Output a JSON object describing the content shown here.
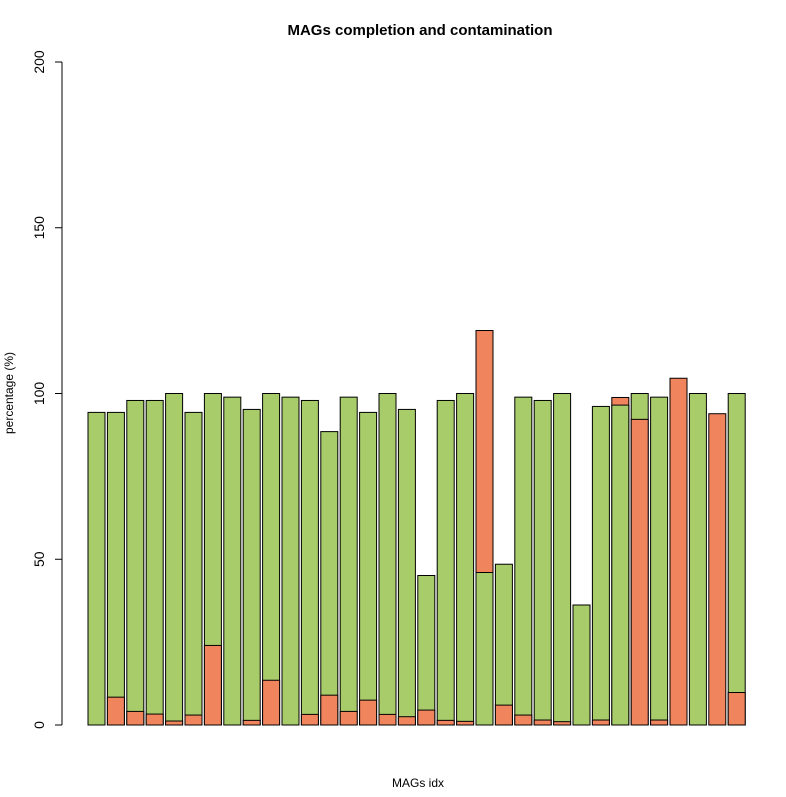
{
  "chart_data": {
    "type": "bar",
    "title": "MAGs completion and contamination",
    "xlabel": "MAGs idx",
    "ylabel": "percentage (%)",
    "ylim": [
      0,
      200
    ],
    "yticks": [
      0,
      50,
      100,
      150,
      200
    ],
    "grid": false,
    "legend": "none",
    "series": [
      {
        "values": [
          94.3,
          94.3,
          97.9,
          97.9,
          100,
          94.3,
          100,
          98.9,
          95.2,
          100,
          98.9,
          97.9,
          88.5,
          98.9,
          94.3,
          100,
          95.2,
          45.1,
          97.9,
          100,
          46.0,
          48.5,
          98.9,
          97.9,
          100,
          36.2,
          96.1,
          96.5,
          100,
          98.9,
          0,
          100,
          0,
          100
        ]
      },
      {
        "values": [
          0,
          8.4,
          4.1,
          3.3,
          1.2,
          3.0,
          24.0,
          0,
          1.4,
          13.5,
          0,
          3.2,
          9.0,
          4.1,
          7.5,
          3.2,
          2.5,
          4.5,
          1.4,
          1.1,
          119.0,
          6.0,
          3.0,
          1.5,
          1.0,
          0,
          1.5,
          98.8,
          92.2,
          1.5,
          104.6,
          0,
          93.9,
          9.8
        ]
      }
    ],
    "colors": {
      "completion": "#a9cc6a",
      "contamination": "#f0845d",
      "outline": "#000000"
    }
  }
}
